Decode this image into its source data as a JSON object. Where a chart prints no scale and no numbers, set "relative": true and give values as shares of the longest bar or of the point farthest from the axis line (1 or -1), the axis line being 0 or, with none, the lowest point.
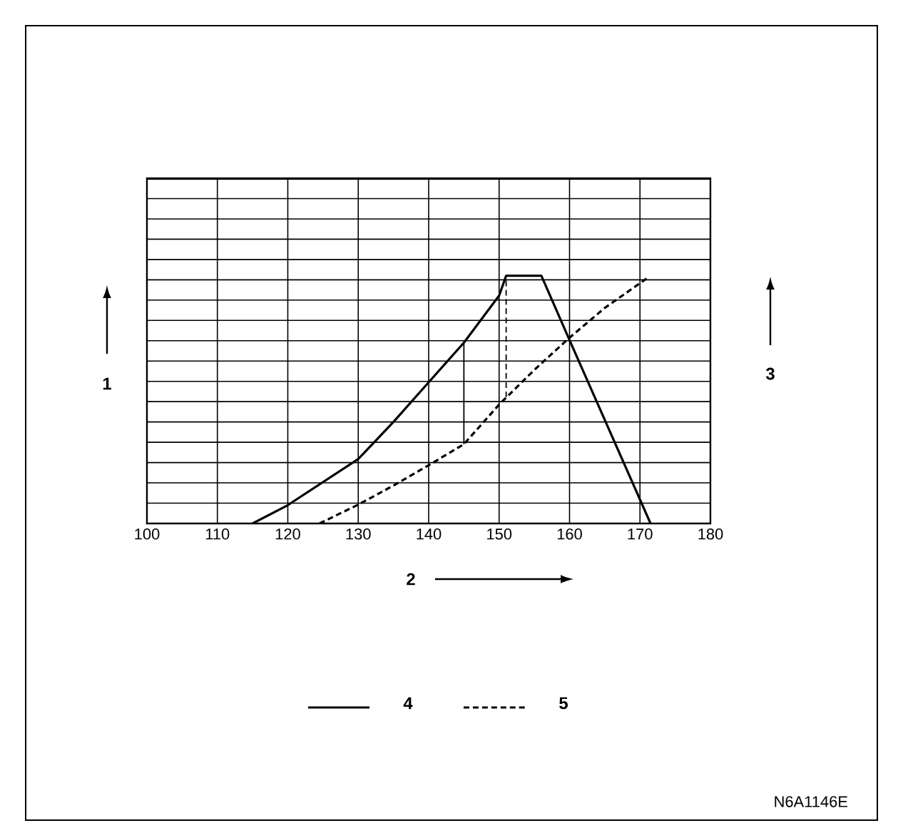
{
  "chart_data": {
    "type": "line",
    "xlabel": "2",
    "ylabel": "1",
    "y2label": "3",
    "relative": true,
    "grid": true,
    "legend": "bottom",
    "tick_labels": "x",
    "xlim": [
      100,
      180
    ],
    "xticks": [
      100,
      110,
      120,
      130,
      140,
      150,
      160,
      170,
      180
    ],
    "series": [
      {
        "name": "4",
        "color": "#000000",
        "line_style": "solid",
        "x": [
          115,
          120,
          130,
          135,
          140,
          145,
          150,
          151,
          156,
          160,
          171.5
        ],
        "values": [
          0,
          0.074,
          0.26,
          0.41,
          0.57,
          0.73,
          0.92,
          1,
          1,
          0.74,
          0
        ]
      },
      {
        "name": "5",
        "color": "#000000",
        "line_style": "dashed",
        "x": [
          124.5,
          130,
          135,
          140,
          145,
          150,
          155,
          160,
          165,
          171
        ],
        "values": [
          0,
          0.076,
          0.153,
          0.235,
          0.32,
          0.48,
          0.62,
          0.75,
          0.87,
          0.99
        ]
      },
      {
        "color": "#000000",
        "line_style": "solid",
        "x": [
          145,
          145
        ],
        "values": [
          0.32,
          0.73
        ]
      },
      {
        "color": "#000000",
        "line_style": "dashed",
        "x": [
          151,
          151
        ],
        "values": [
          0.51,
          1
        ]
      }
    ],
    "annotations": [
      "N6A1146E"
    ]
  }
}
